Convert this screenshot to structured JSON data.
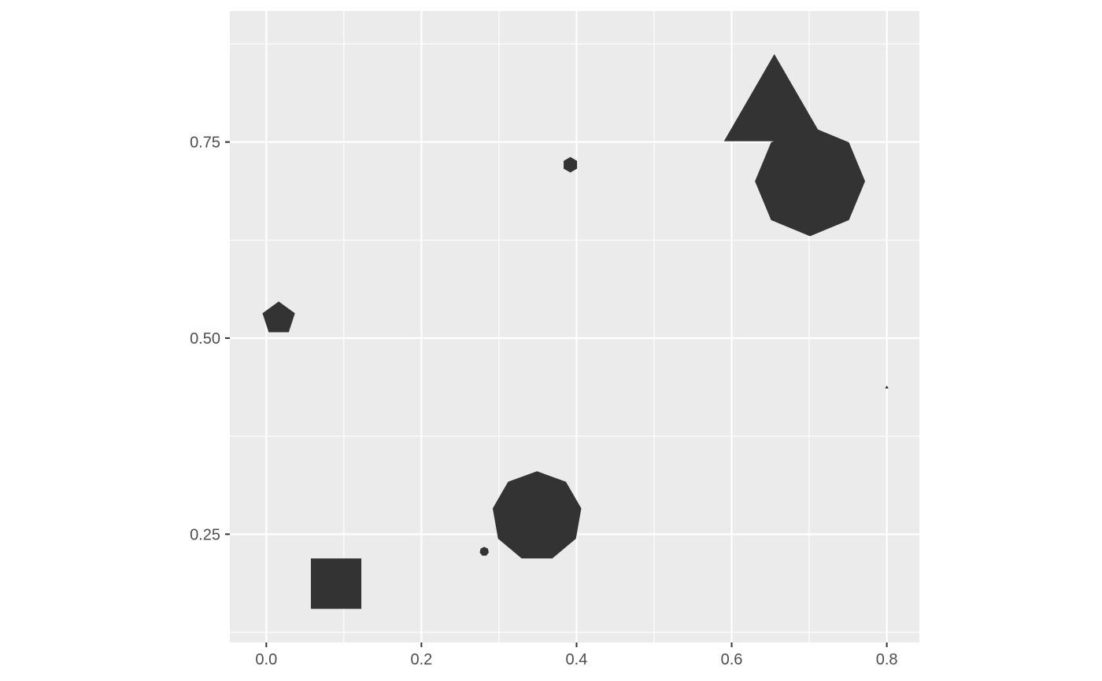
{
  "chart_data": {
    "type": "scatter",
    "title": "",
    "xlabel": "",
    "ylabel": "",
    "xlim": [
      -0.047,
      0.842
    ],
    "ylim": [
      0.112,
      0.917
    ],
    "grid": true,
    "panel_background": "#ebebeb",
    "grid_color": "#ffffff",
    "mark_color": "#333333",
    "x_ticks": [
      {
        "value": 0.0,
        "label": "0.0"
      },
      {
        "value": 0.2,
        "label": "0.2"
      },
      {
        "value": 0.4,
        "label": "0.4"
      },
      {
        "value": 0.6,
        "label": "0.6"
      },
      {
        "value": 0.8,
        "label": "0.8"
      }
    ],
    "y_ticks": [
      {
        "value": 0.25,
        "label": "0.25"
      },
      {
        "value": 0.5,
        "label": "0.50"
      },
      {
        "value": 0.75,
        "label": "0.75"
      }
    ],
    "x_minor": [
      0.1,
      0.3,
      0.5,
      0.7
    ],
    "y_minor": [
      0.125,
      0.375,
      0.625,
      0.875
    ],
    "points": [
      {
        "x": 0.09,
        "y": 0.187,
        "sides": 4,
        "size": 0.046
      },
      {
        "x": 0.016,
        "y": 0.525,
        "sides": 5,
        "size": 0.022
      },
      {
        "x": 0.392,
        "y": 0.721,
        "sides": 6,
        "size": 0.01
      },
      {
        "x": 0.281,
        "y": 0.228,
        "sides": 7,
        "size": 0.006
      },
      {
        "x": 0.349,
        "y": 0.273,
        "sides": 9,
        "size": 0.058
      },
      {
        "x": 0.655,
        "y": 0.788,
        "sides": 3,
        "size": 0.075
      },
      {
        "x": 0.701,
        "y": 0.7,
        "sides": 8,
        "size": 0.071
      },
      {
        "x": 0.8,
        "y": 0.437,
        "sides": 3,
        "size": 0.002
      }
    ]
  }
}
